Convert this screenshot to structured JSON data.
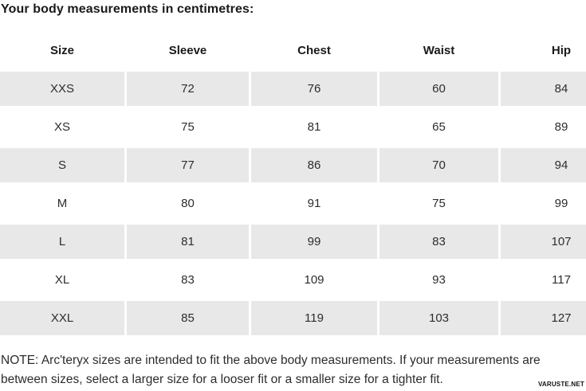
{
  "page": {
    "title": "Your body measurements in centimetres:",
    "note": "NOTE: Arc'teryx sizes are intended to fit the above body measurements. If your measurements are\nbetween sizes, select a larger size for a looser fit or a smaller size for a tighter fit.",
    "watermark": "VARUSTE.NET"
  },
  "colors": {
    "stripe": "#e8e8e8",
    "heading_text": "#1a1a1a",
    "body_text": "#2d2d2d",
    "background": "#ffffff"
  },
  "table": {
    "columns": [
      "Size",
      "Sleeve",
      "Chest",
      "Waist",
      "Hip"
    ],
    "rows": [
      [
        "XXS",
        "72",
        "76",
        "60",
        "84"
      ],
      [
        "XS",
        "75",
        "81",
        "65",
        "89"
      ],
      [
        "S",
        "77",
        "86",
        "70",
        "94"
      ],
      [
        "M",
        "80",
        "91",
        "75",
        "99"
      ],
      [
        "L",
        "81",
        "99",
        "83",
        "107"
      ],
      [
        "XL",
        "83",
        "109",
        "93",
        "117"
      ],
      [
        "XXL",
        "85",
        "119",
        "103",
        "127"
      ]
    ]
  }
}
